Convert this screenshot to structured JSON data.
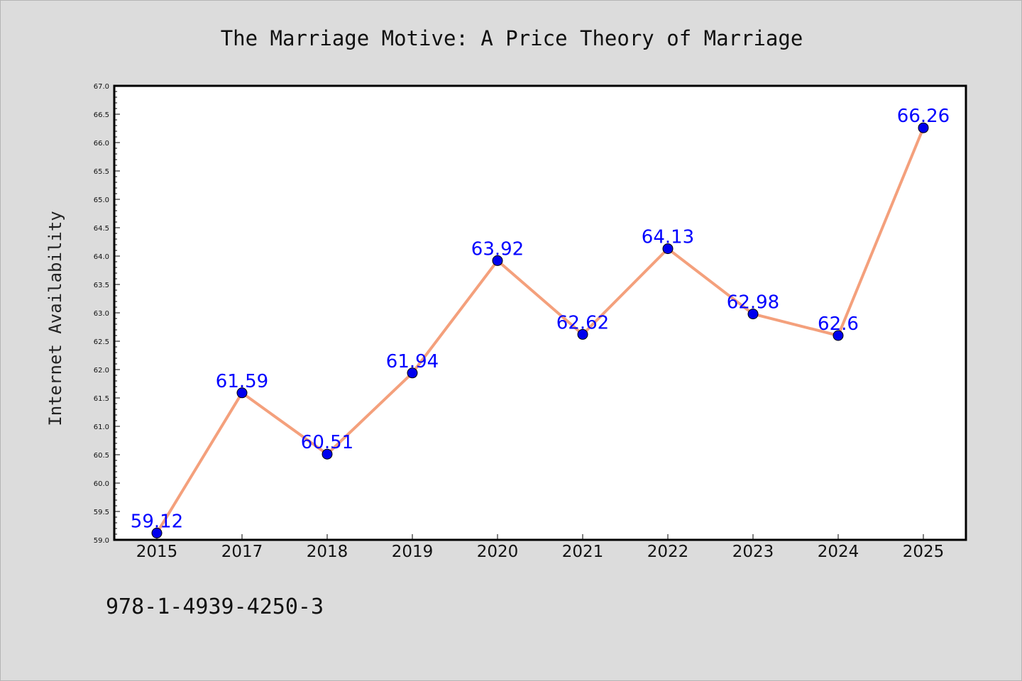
{
  "chart_data": {
    "type": "line",
    "title": "The Marriage Motive: A Price Theory of Marriage",
    "xlabel": "",
    "ylabel": "Internet Availability",
    "categories": [
      "2015",
      "2017",
      "2018",
      "2019",
      "2020",
      "2021",
      "2022",
      "2023",
      "2024",
      "2025"
    ],
    "series": [
      {
        "values": [
          59.12,
          61.59,
          60.51,
          61.94,
          63.92,
          62.62,
          64.13,
          62.98,
          62.6,
          66.26
        ],
        "data_labels": [
          "59.12",
          "61.59",
          "60.51",
          "61.94",
          "63.92",
          "62.62",
          "64.13",
          "62.98",
          "62.6",
          "66.26"
        ],
        "line_color": "#f4a07c",
        "marker_color": "#0000ee"
      }
    ],
    "ylim": [
      59.0,
      67.0
    ],
    "yticks": [
      "59.0",
      "59.5",
      "60.0",
      "60.5",
      "61.0",
      "61.5",
      "62.0",
      "62.5",
      "63.0",
      "63.5",
      "64.0",
      "64.5",
      "65.0",
      "65.5",
      "66.0",
      "66.5",
      "67.0"
    ],
    "grid": false,
    "legend": "none",
    "background": "#dcdcdc",
    "plot_background": "#ffffff",
    "label_color": "#0000ff"
  },
  "footer": {
    "isbn": "978-1-4939-4250-3"
  }
}
